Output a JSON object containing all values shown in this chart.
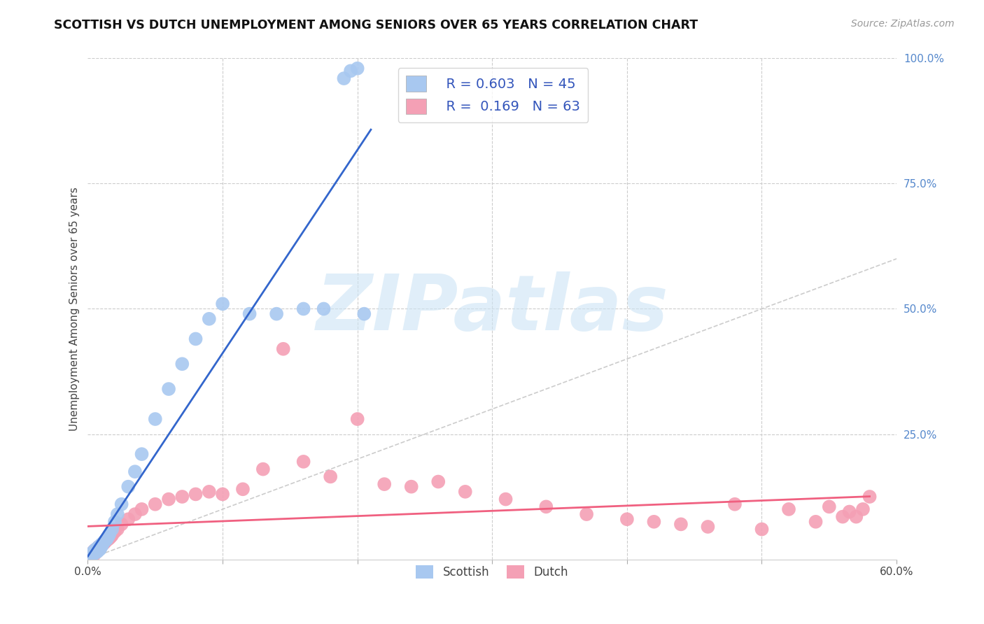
{
  "title": "SCOTTISH VS DUTCH UNEMPLOYMENT AMONG SENIORS OVER 65 YEARS CORRELATION CHART",
  "source": "Source: ZipAtlas.com",
  "ylabel_left": "Unemployment Among Seniors over 65 years",
  "xlim": [
    0.0,
    0.6
  ],
  "ylim": [
    0.0,
    1.0
  ],
  "x_tick_positions": [
    0.0,
    0.1,
    0.2,
    0.3,
    0.4,
    0.5,
    0.6
  ],
  "x_tick_labels": [
    "0.0%",
    "",
    "",
    "",
    "",
    "",
    "60.0%"
  ],
  "y_ticks_right": [
    0.0,
    0.25,
    0.5,
    0.75,
    1.0
  ],
  "y_tick_labels_right": [
    "",
    "25.0%",
    "50.0%",
    "75.0%",
    "100.0%"
  ],
  "watermark": "ZIPatlas",
  "legend_r_scottish": "0.603",
  "legend_n_scottish": "45",
  "legend_r_dutch": "0.169",
  "legend_n_dutch": "63",
  "scottish_color": "#a8c8f0",
  "dutch_color": "#f4a0b5",
  "scottish_line_color": "#3366cc",
  "dutch_line_color": "#f06080",
  "diagonal_color": "#cccccc",
  "scottish_x": [
    0.001,
    0.002,
    0.002,
    0.003,
    0.003,
    0.004,
    0.004,
    0.005,
    0.005,
    0.006,
    0.006,
    0.007,
    0.007,
    0.008,
    0.008,
    0.009,
    0.01,
    0.01,
    0.011,
    0.012,
    0.013,
    0.014,
    0.015,
    0.016,
    0.018,
    0.02,
    0.022,
    0.025,
    0.03,
    0.035,
    0.04,
    0.05,
    0.06,
    0.07,
    0.08,
    0.09,
    0.1,
    0.12,
    0.14,
    0.16,
    0.175,
    0.19,
    0.195,
    0.2,
    0.205
  ],
  "scottish_y": [
    0.005,
    0.008,
    0.01,
    0.01,
    0.012,
    0.01,
    0.015,
    0.012,
    0.018,
    0.014,
    0.02,
    0.015,
    0.022,
    0.018,
    0.025,
    0.02,
    0.025,
    0.03,
    0.03,
    0.035,
    0.038,
    0.04,
    0.045,
    0.05,
    0.06,
    0.075,
    0.09,
    0.11,
    0.145,
    0.175,
    0.21,
    0.28,
    0.34,
    0.39,
    0.44,
    0.48,
    0.51,
    0.49,
    0.49,
    0.5,
    0.5,
    0.96,
    0.975,
    0.98,
    0.49
  ],
  "dutch_x": [
    0.001,
    0.002,
    0.002,
    0.003,
    0.003,
    0.004,
    0.004,
    0.005,
    0.005,
    0.006,
    0.006,
    0.007,
    0.008,
    0.008,
    0.009,
    0.01,
    0.011,
    0.012,
    0.013,
    0.014,
    0.015,
    0.016,
    0.017,
    0.018,
    0.02,
    0.022,
    0.025,
    0.03,
    0.035,
    0.04,
    0.05,
    0.06,
    0.07,
    0.08,
    0.09,
    0.1,
    0.115,
    0.13,
    0.145,
    0.16,
    0.18,
    0.2,
    0.22,
    0.24,
    0.26,
    0.28,
    0.31,
    0.34,
    0.37,
    0.4,
    0.42,
    0.44,
    0.46,
    0.48,
    0.5,
    0.52,
    0.54,
    0.55,
    0.56,
    0.565,
    0.57,
    0.575,
    0.58
  ],
  "dutch_y": [
    0.005,
    0.008,
    0.01,
    0.01,
    0.012,
    0.012,
    0.015,
    0.01,
    0.018,
    0.015,
    0.02,
    0.018,
    0.02,
    0.025,
    0.022,
    0.028,
    0.03,
    0.032,
    0.035,
    0.038,
    0.04,
    0.042,
    0.045,
    0.048,
    0.055,
    0.06,
    0.07,
    0.08,
    0.09,
    0.1,
    0.11,
    0.12,
    0.125,
    0.13,
    0.135,
    0.13,
    0.14,
    0.18,
    0.42,
    0.195,
    0.165,
    0.28,
    0.15,
    0.145,
    0.155,
    0.135,
    0.12,
    0.105,
    0.09,
    0.08,
    0.075,
    0.07,
    0.065,
    0.11,
    0.06,
    0.1,
    0.075,
    0.105,
    0.085,
    0.095,
    0.085,
    0.1,
    0.125
  ]
}
